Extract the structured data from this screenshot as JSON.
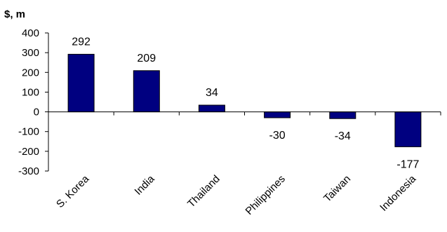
{
  "chart_data": {
    "type": "bar",
    "ylabel": "$, m",
    "categories": [
      "S. Korea",
      "India",
      "Thailand",
      "Philippines",
      "Taiwan",
      "Indonesia"
    ],
    "values": [
      292,
      209,
      34,
      -30,
      -34,
      -177
    ],
    "data_labels": [
      "292",
      "209",
      "34",
      "-30",
      "-34",
      "-177"
    ],
    "ylim": [
      -300,
      400
    ],
    "yticks": [
      400,
      300,
      200,
      100,
      0,
      -100,
      -200,
      -300
    ],
    "ytick_labels": [
      "400",
      "300",
      "200",
      "100",
      "0",
      "-100",
      "-200",
      "-300"
    ],
    "grid": false,
    "legend": "none",
    "bar_color": "#000080"
  }
}
